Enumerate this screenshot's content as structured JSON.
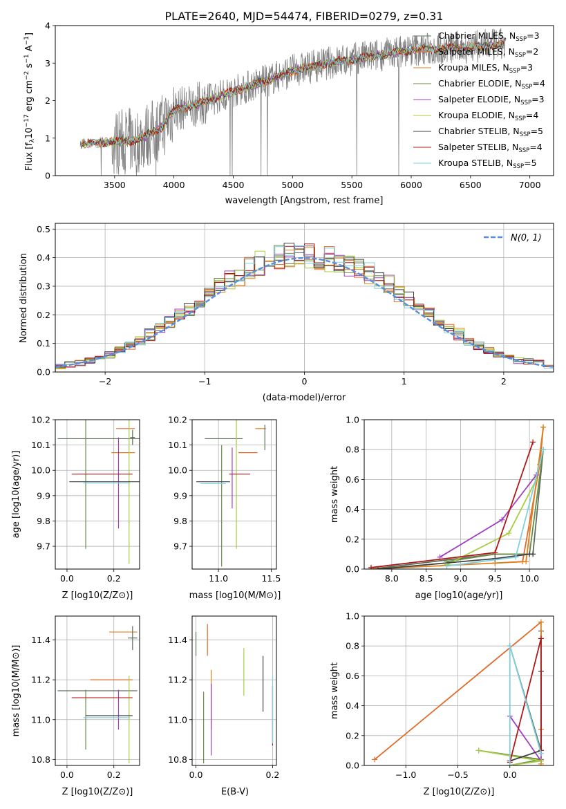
{
  "figure": {
    "title": "PLATE=2640, MJD=54474, FIBERID=0279, z=0.31"
  },
  "colors": {
    "data": "#808080",
    "grid": "#b0b0b0",
    "normal_curve": "#5a8fdc",
    "models": [
      "#5a6f5a",
      "#e06a2a",
      "#e0801a",
      "#6a8a4a",
      "#a040c0",
      "#a8cc40",
      "#404040",
      "#b01818",
      "#80d0e0"
    ]
  },
  "chart_data": [
    {
      "id": "spectrum",
      "type": "line",
      "title": "PLATE=2640, MJD=54474, FIBERID=0279, z=0.31",
      "xlabel": "wavelength [Angstrom, rest frame]",
      "ylabel": "Flux [f_λ 10^-17 erg cm^-2 s^-1 A^-1]",
      "xlim": [
        3000,
        7200
      ],
      "ylim": [
        0,
        4
      ],
      "xticks": [
        3500,
        4000,
        4500,
        5000,
        5500,
        6000,
        6500,
        7000
      ],
      "yticks": [
        0,
        1,
        2,
        3,
        4
      ],
      "grid": false,
      "legend_position": "top-right",
      "legend": [
        "Chabrier MILES, N_SSP=3",
        "Salpeter MILES, N_SSP=2",
        "Kroupa MILES, N_SSP=3",
        "Chabrier ELODIE, N_SSP=4",
        "Salpeter ELODIE, N_SSP=3",
        "Kroupa ELODIE, N_SSP=4",
        "Chabrier STELIB, N_SSP=5",
        "Salpeter STELIB, N_SSP=4",
        "Kroupa STELIB, N_SSP=5"
      ],
      "model_trend_x": [
        3200,
        3500,
        3700,
        3900,
        4000,
        4200,
        4500,
        4800,
        5000,
        5300,
        5600,
        6000,
        6300,
        6600,
        6800
      ],
      "model_trend_y": [
        0.85,
        0.9,
        0.95,
        1.3,
        1.75,
        1.9,
        2.25,
        2.55,
        2.8,
        3.0,
        3.15,
        3.35,
        3.4,
        3.45,
        3.5
      ]
    },
    {
      "id": "residuals",
      "type": "histogram",
      "xlabel": "(data-model)/error",
      "ylabel": "Normed distribution",
      "xlim": [
        -2.5,
        2.5
      ],
      "ylim": [
        0,
        0.52
      ],
      "xticks": [
        -2,
        -1,
        0,
        1,
        2
      ],
      "yticks": [
        0.0,
        0.1,
        0.2,
        0.3,
        0.4,
        0.5
      ],
      "grid": true,
      "legend_position": "top-right",
      "normal_label": "N(0, 1)",
      "base_heights": [
        0.02,
        0.025,
        0.03,
        0.04,
        0.05,
        0.06,
        0.075,
        0.09,
        0.11,
        0.13,
        0.155,
        0.18,
        0.2,
        0.215,
        0.24,
        0.265,
        0.29,
        0.315,
        0.335,
        0.36,
        0.375,
        0.39,
        0.4,
        0.405,
        0.41,
        0.405,
        0.4,
        0.39,
        0.38,
        0.37,
        0.36,
        0.345,
        0.325,
        0.3,
        0.275,
        0.25,
        0.225,
        0.2,
        0.175,
        0.15,
        0.13,
        0.11,
        0.09,
        0.075,
        0.06,
        0.05,
        0.04,
        0.035,
        0.03,
        0.025
      ]
    },
    {
      "id": "age-vs-Z",
      "type": "scatter",
      "xlabel": "Z [log10(Z/Z⊙)]",
      "ylabel": "age  [log10(age/yr)]",
      "xlim": [
        -0.05,
        0.31
      ],
      "ylim": [
        9.61,
        10.2
      ],
      "xticks": [
        0.0,
        0.2
      ],
      "xtick_labels": [
        "0.0",
        "0.2"
      ],
      "yticks": [
        9.7,
        9.8,
        9.9,
        10.0,
        10.1,
        10.2
      ],
      "grid": true,
      "points": [
        {
          "x": 0.16,
          "y": 10.125,
          "xerr": 0.2,
          "yerr": 0
        },
        {
          "x": 0.25,
          "y": 10.165,
          "xerr": 0.04,
          "yerr": 0
        },
        {
          "x": 0.24,
          "y": 10.07,
          "xerr": 0.05,
          "yerr": 0
        },
        {
          "x": 0.08,
          "y": 10.13,
          "xerr": 0,
          "yerr": 0.44
        },
        {
          "x": 0.22,
          "y": 9.95,
          "xerr": 0,
          "yerr": 0.18
        },
        {
          "x": 0.265,
          "y": 10.0,
          "xerr": 0,
          "yerr": 0.37
        },
        {
          "x": 0.18,
          "y": 9.955,
          "xerr": 0.17,
          "yerr": 0
        },
        {
          "x": 0.15,
          "y": 9.985,
          "xerr": 0.13,
          "yerr": 0
        },
        {
          "x": 0.17,
          "y": 9.95,
          "xerr": 0.1,
          "yerr": 0
        },
        {
          "x": 0.28,
          "y": 10.13,
          "xerr": 0.01,
          "yerr": 0.03
        }
      ]
    },
    {
      "id": "age-vs-mass",
      "type": "scatter",
      "xlabel": "mass [log10(M/M⊙)]",
      "ylabel": "",
      "xlim": [
        10.75,
        11.55
      ],
      "ylim": [
        9.61,
        10.2
      ],
      "xticks": [
        11.0,
        11.5
      ],
      "yticks": [
        9.7,
        9.8,
        9.9,
        10.0,
        10.1,
        10.2
      ],
      "grid": true,
      "points": [
        {
          "x": 11.05,
          "y": 10.125,
          "xerr": 0.18,
          "yerr": 0
        },
        {
          "x": 11.28,
          "y": 10.07,
          "xerr": 0.09,
          "yerr": 0
        },
        {
          "x": 11.4,
          "y": 10.165,
          "xerr": 0.05,
          "yerr": 0
        },
        {
          "x": 11.03,
          "y": 9.86,
          "xerr": 0,
          "yerr": 0.24
        },
        {
          "x": 11.13,
          "y": 9.97,
          "xerr": 0,
          "yerr": 0.12
        },
        {
          "x": 11.17,
          "y": 9.95,
          "xerr": 0,
          "yerr": 0.26
        },
        {
          "x": 10.95,
          "y": 9.955,
          "xerr": 0.16,
          "yerr": 0
        },
        {
          "x": 11.2,
          "y": 9.985,
          "xerr": 0.1,
          "yerr": 0
        },
        {
          "x": 10.95,
          "y": 9.948,
          "xerr": 0.12,
          "yerr": 0
        },
        {
          "x": 11.44,
          "y": 10.13,
          "xerr": 0,
          "yerr": 0.05
        }
      ]
    },
    {
      "id": "mass-weight-vs-age",
      "type": "line",
      "xlabel": "age  [log10(age/yr)]",
      "ylabel": "mass weight",
      "xlim": [
        7.6,
        10.35
      ],
      "ylim": [
        0,
        1
      ],
      "xticks": [
        8.0,
        8.5,
        9.0,
        9.5,
        10.0
      ],
      "yticks": [
        0.0,
        0.2,
        0.4,
        0.6,
        0.8,
        1.0
      ],
      "grid": true,
      "series": [
        {
          "x": [
            7.7,
            9.5,
            10.05,
            10.2
          ],
          "y": [
            0.0,
            0.1,
            0.1,
            0.8
          ]
        },
        {
          "x": [
            9.5,
            9.9,
            10.15,
            10.2
          ],
          "y": [
            0.04,
            0.05,
            0.7,
            0.95
          ]
        },
        {
          "x": [
            7.7,
            9.5,
            9.95,
            10.2
          ],
          "y": [
            0.0,
            0.04,
            0.05,
            0.95
          ]
        },
        {
          "x": [
            8.8,
            9.5,
            10.0,
            10.2
          ],
          "y": [
            0.05,
            0.1,
            0.1,
            0.8
          ]
        },
        {
          "x": [
            8.7,
            9.6,
            10.1
          ],
          "y": [
            0.08,
            0.33,
            0.63
          ]
        },
        {
          "x": [
            8.8,
            9.7,
            10.1
          ],
          "y": [
            0.03,
            0.24,
            0.6
          ]
        },
        {
          "x": [
            7.8,
            9.5,
            10.0,
            10.05
          ],
          "y": [
            0.0,
            0.07,
            0.1,
            0.1
          ]
        },
        {
          "x": [
            7.7,
            9.5,
            10.05
          ],
          "y": [
            0.01,
            0.11,
            0.85
          ]
        },
        {
          "x": [
            8.8,
            9.8,
            10.2
          ],
          "y": [
            0.02,
            0.08,
            0.8
          ]
        }
      ]
    },
    {
      "id": "mass-vs-Z",
      "type": "scatter",
      "xlabel": "Z [log10(Z/Z⊙)]",
      "ylabel": "mass [log10(M/M⊙)]",
      "xlim": [
        -0.05,
        0.31
      ],
      "ylim": [
        10.77,
        11.52
      ],
      "xticks": [
        0.0,
        0.2
      ],
      "xtick_labels": [
        "0.0",
        "0.2"
      ],
      "yticks": [
        10.8,
        11.0,
        11.2,
        11.4
      ],
      "grid": true,
      "points": [
        {
          "x": 0.13,
          "y": 11.145,
          "xerr": 0.17,
          "yerr": 0
        },
        {
          "x": 0.19,
          "y": 11.2,
          "xerr": 0.09,
          "yerr": 0
        },
        {
          "x": 0.24,
          "y": 11.44,
          "xerr": 0.06,
          "yerr": 0
        },
        {
          "x": 0.08,
          "y": 11.0,
          "xerr": 0,
          "yerr": 0.15
        },
        {
          "x": 0.22,
          "y": 11.05,
          "xerr": 0,
          "yerr": 0.1
        },
        {
          "x": 0.265,
          "y": 11.0,
          "xerr": 0,
          "yerr": 0.22
        },
        {
          "x": 0.18,
          "y": 11.02,
          "xerr": 0.1,
          "yerr": 0
        },
        {
          "x": 0.15,
          "y": 11.11,
          "xerr": 0.13,
          "yerr": 0
        },
        {
          "x": 0.17,
          "y": 11.01,
          "xerr": 0.1,
          "yerr": 0
        },
        {
          "x": 0.28,
          "y": 11.41,
          "xerr": 0.02,
          "yerr": 0.06
        }
      ]
    },
    {
      "id": "mass-vs-ebv",
      "type": "scatter",
      "xlabel": "E(B-V)",
      "ylabel": "",
      "xlim": [
        -0.01,
        0.21
      ],
      "ylim": [
        10.77,
        11.52
      ],
      "xticks": [
        0.0,
        0.2
      ],
      "xtick_labels": [
        "0.0",
        "0.2"
      ],
      "yticks": [
        10.8,
        11.0,
        11.2,
        11.4
      ],
      "grid": true,
      "points": [
        {
          "x": 0.0,
          "y": 11.38,
          "xerr": 0,
          "yerr": 0.06
        },
        {
          "x": 0.03,
          "y": 11.4,
          "xerr": 0,
          "yerr": 0.08
        },
        {
          "x": 0.04,
          "y": 11.1,
          "xerr": 0,
          "yerr": 0.15
        },
        {
          "x": 0.02,
          "y": 10.96,
          "xerr": 0,
          "yerr": 0.18
        },
        {
          "x": 0.04,
          "y": 11.0,
          "xerr": 0,
          "yerr": 0.18
        },
        {
          "x": 0.125,
          "y": 11.24,
          "xerr": 0,
          "yerr": 0.12
        },
        {
          "x": 0.175,
          "y": 11.18,
          "xerr": 0,
          "yerr": 0.14
        },
        {
          "x": 0.2,
          "y": 11.02,
          "xerr": 0,
          "yerr": 0.15
        },
        {
          "x": 0.2,
          "y": 11.05,
          "xerr": 0,
          "yerr": 0.17
        }
      ]
    },
    {
      "id": "mass-weight-vs-Z",
      "type": "line",
      "xlabel": "Z [log10(Z/Z⊙)]",
      "ylabel": "mass weight",
      "xlim": [
        -1.4,
        0.42
      ],
      "ylim": [
        0,
        1
      ],
      "xticks": [
        -1.0,
        -0.5,
        0.0
      ],
      "yticks": [
        0.0,
        0.2,
        0.4,
        0.6,
        0.8,
        1.0
      ],
      "grid": true,
      "series": [
        {
          "x": [
            0.0,
            0.3,
            0.3
          ],
          "y": [
            0.8,
            0.1,
            0.9
          ]
        },
        {
          "x": [
            -1.3,
            0.3
          ],
          "y": [
            0.04,
            0.96
          ]
        },
        {
          "x": [
            0.3,
            0.3,
            0.3
          ],
          "y": [
            0.01,
            0.24,
            0.96
          ]
        },
        {
          "x": [
            -0.3,
            0.3,
            0.0
          ],
          "y": [
            0.1,
            0.04,
            0.0
          ]
        },
        {
          "x": [
            0.0,
            0.3,
            0.3
          ],
          "y": [
            0.33,
            0.03,
            0.63
          ]
        },
        {
          "x": [
            -0.3,
            0.3,
            0.0
          ],
          "y": [
            0.1,
            0.03,
            0.0
          ]
        },
        {
          "x": [
            0.0,
            0.3,
            0.3
          ],
          "y": [
            0.03,
            0.1,
            0.63
          ]
        },
        {
          "x": [
            0.0,
            0.3,
            0.3
          ],
          "y": [
            0.02,
            0.85,
            0.1
          ]
        },
        {
          "x": [
            0.0,
            0.0,
            0.3
          ],
          "y": [
            0.0,
            0.8,
            0.08
          ]
        }
      ]
    }
  ]
}
